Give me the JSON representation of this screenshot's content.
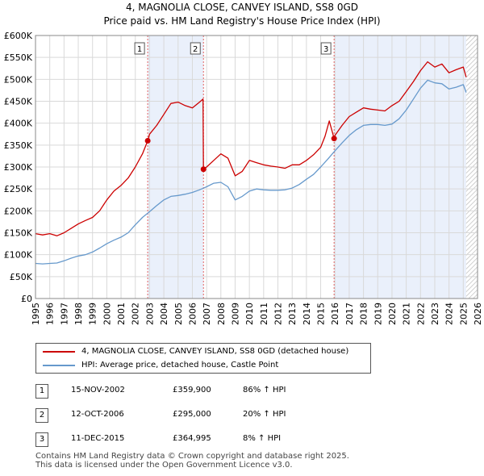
{
  "title_line1": "4, MAGNOLIA CLOSE, CANVEY ISLAND, SS8 0GD",
  "title_line2": "Price paid vs. HM Land Registry's House Price Index (HPI)",
  "legend": {
    "property": "4, MAGNOLIA CLOSE, CANVEY ISLAND, SS8 0GD (detached house)",
    "hpi": "HPI: Average price, detached house, Castle Point"
  },
  "colors": {
    "property": "#cc0000",
    "hpi": "#6699cc",
    "shade": "#eaf0fb",
    "grid": "#d9d9d9",
    "marker_line": "#e06060"
  },
  "sales": [
    {
      "num": "1",
      "date": "15-NOV-2002",
      "price": "£359,900",
      "hpi_change": "86% ↑ HPI"
    },
    {
      "num": "2",
      "date": "12-OCT-2006",
      "price": "£295,000",
      "hpi_change": "20% ↑ HPI"
    },
    {
      "num": "3",
      "date": "11-DEC-2015",
      "price": "£364,995",
      "hpi_change": "8% ↑ HPI"
    }
  ],
  "footer_line1": "Contains HM Land Registry data © Crown copyright and database right 2025.",
  "footer_line2": "This data is licensed under the Open Government Licence v3.0.",
  "chart_data": {
    "type": "line",
    "title": "4, MAGNOLIA CLOSE, CANVEY ISLAND, SS8 0GD",
    "subtitle": "Price paid vs. HM Land Registry's House Price Index (HPI)",
    "xlabel": "",
    "ylabel": "",
    "xlim": [
      1995,
      2026
    ],
    "ylim": [
      0,
      600000
    ],
    "grid": true,
    "y_ticks": [
      0,
      50000,
      100000,
      150000,
      200000,
      250000,
      300000,
      350000,
      400000,
      450000,
      500000,
      550000,
      600000
    ],
    "y_tick_labels": [
      "£0",
      "£50K",
      "£100K",
      "£150K",
      "£200K",
      "£250K",
      "£300K",
      "£350K",
      "£400K",
      "£450K",
      "£500K",
      "£550K",
      "£600K"
    ],
    "x_ticks": [
      1995,
      1996,
      1997,
      1998,
      1999,
      2000,
      2001,
      2002,
      2003,
      2004,
      2005,
      2006,
      2007,
      2008,
      2009,
      2010,
      2011,
      2012,
      2013,
      2014,
      2015,
      2016,
      2017,
      2018,
      2019,
      2020,
      2021,
      2022,
      2023,
      2024,
      2025,
      2026
    ],
    "x_tick_labels": [
      "1995",
      "1996",
      "1997",
      "1998",
      "1999",
      "2000",
      "2001",
      "2002",
      "2003",
      "2004",
      "2005",
      "2006",
      "2007",
      "2008",
      "2009",
      "2010",
      "2011",
      "2012",
      "2013",
      "2014",
      "2015",
      "2016",
      "2017",
      "2018",
      "2019",
      "2020",
      "2021",
      "2022",
      "2023",
      "2024",
      "2025",
      "2026"
    ],
    "shaded_ranges": [
      [
        2002.87,
        2006.78
      ],
      [
        2015.94,
        2025.2
      ]
    ],
    "hatched_from": 2025.2,
    "sale_markers": [
      {
        "label": "1",
        "x": 2002.87,
        "y": 359900
      },
      {
        "label": "2",
        "x": 2006.78,
        "y": 295000
      },
      {
        "label": "3",
        "x": 2015.94,
        "y": 364995
      }
    ],
    "series": [
      {
        "name": "4, MAGNOLIA CLOSE, CANVEY ISLAND, SS8 0GD (detached house)",
        "x": [
          1995.0,
          1995.5,
          1996.0,
          1996.5,
          1997.0,
          1997.5,
          1998.0,
          1998.5,
          1999.0,
          1999.5,
          2000.0,
          2000.5,
          2001.0,
          2001.5,
          2002.0,
          2002.5,
          2002.87,
          2003.0,
          2003.5,
          2004.0,
          2004.5,
          2005.0,
          2005.5,
          2006.0,
          2006.5,
          2006.75,
          2006.78,
          2007.0,
          2007.5,
          2008.0,
          2008.5,
          2009.0,
          2009.5,
          2010.0,
          2010.5,
          2011.0,
          2011.5,
          2012.0,
          2012.5,
          2013.0,
          2013.5,
          2014.0,
          2014.5,
          2015.0,
          2015.3,
          2015.6,
          2015.94,
          2016.0,
          2016.5,
          2017.0,
          2017.5,
          2018.0,
          2018.5,
          2019.0,
          2019.5,
          2020.0,
          2020.5,
          2021.0,
          2021.5,
          2022.0,
          2022.5,
          2023.0,
          2023.5,
          2024.0,
          2024.5,
          2025.0,
          2025.2
        ],
        "y": [
          148000,
          145000,
          148000,
          143000,
          150000,
          160000,
          170000,
          178000,
          185000,
          200000,
          225000,
          245000,
          258000,
          275000,
          300000,
          330000,
          359900,
          375000,
          395000,
          420000,
          445000,
          448000,
          440000,
          435000,
          448000,
          455000,
          295000,
          300000,
          315000,
          330000,
          320000,
          280000,
          290000,
          315000,
          310000,
          305000,
          302000,
          300000,
          297000,
          305000,
          305000,
          315000,
          328000,
          345000,
          370000,
          405000,
          364995,
          372000,
          395000,
          415000,
          425000,
          435000,
          432000,
          430000,
          428000,
          440000,
          450000,
          472000,
          495000,
          520000,
          540000,
          528000,
          535000,
          515000,
          522000,
          528000,
          505000
        ]
      },
      {
        "name": "HPI: Average price, detached house, Castle Point",
        "x": [
          1995.0,
          1995.5,
          1996.0,
          1996.5,
          1997.0,
          1997.5,
          1998.0,
          1998.5,
          1999.0,
          1999.5,
          2000.0,
          2000.5,
          2001.0,
          2001.5,
          2002.0,
          2002.5,
          2003.0,
          2003.5,
          2004.0,
          2004.5,
          2005.0,
          2005.5,
          2006.0,
          2006.5,
          2007.0,
          2007.5,
          2008.0,
          2008.5,
          2009.0,
          2009.5,
          2010.0,
          2010.5,
          2011.0,
          2011.5,
          2012.0,
          2012.5,
          2013.0,
          2013.5,
          2014.0,
          2014.5,
          2015.0,
          2015.5,
          2016.0,
          2016.5,
          2017.0,
          2017.5,
          2018.0,
          2018.5,
          2019.0,
          2019.5,
          2020.0,
          2020.5,
          2021.0,
          2021.5,
          2022.0,
          2022.5,
          2023.0,
          2023.5,
          2024.0,
          2024.5,
          2025.0,
          2025.2
        ],
        "y": [
          80000,
          79000,
          80000,
          81000,
          86000,
          92000,
          97000,
          100000,
          106000,
          115000,
          125000,
          133000,
          140000,
          150000,
          168000,
          185000,
          198000,
          212000,
          225000,
          233000,
          235000,
          238000,
          242000,
          248000,
          255000,
          263000,
          265000,
          255000,
          225000,
          233000,
          245000,
          250000,
          248000,
          247000,
          247000,
          248000,
          252000,
          260000,
          272000,
          283000,
          300000,
          318000,
          337000,
          355000,
          372000,
          385000,
          395000,
          397000,
          397000,
          395000,
          398000,
          410000,
          430000,
          455000,
          480000,
          498000,
          492000,
          490000,
          478000,
          482000,
          488000,
          470000
        ]
      }
    ]
  }
}
